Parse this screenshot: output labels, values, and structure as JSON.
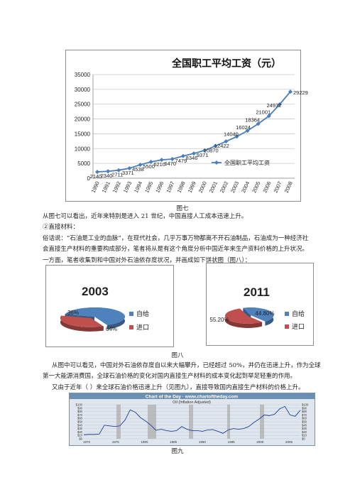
{
  "line_chart": {
    "title": "全国职工平均工资（元）",
    "legend": "全国职工平均工资",
    "caption": "图七"
  },
  "chart_data": [
    {
      "type": "line",
      "title": "全国职工平均工资（元）",
      "x": [
        "1990",
        "1991",
        "1992",
        "1993",
        "1994",
        "1995",
        "1996",
        "1997",
        "1998",
        "1999",
        "2000",
        "2001",
        "2002",
        "2003",
        "2004",
        "2005",
        "2006",
        "2007",
        "2008"
      ],
      "series": [
        {
          "name": "全国职工平均工资",
          "values": [
            2140,
            2340,
            2711,
            3371,
            4538,
            5500,
            6210,
            6470,
            7479,
            8346,
            9371,
            10870,
            12422,
            14040,
            16024,
            18364,
            21001,
            24932,
            29229
          ]
        }
      ],
      "ylim": [
        0,
        35000
      ],
      "yticks": [
        0,
        5000,
        10000,
        15000,
        20000,
        25000,
        30000,
        35000
      ],
      "data_labels": [
        "2140",
        "2340",
        "2711",
        "3371",
        "4538",
        "5500",
        "6210",
        "6470",
        "7479",
        "8346",
        "9371",
        "10870",
        "12422",
        "14040",
        "16024",
        "18364",
        "21001",
        "24932",
        "29229"
      ],
      "grid": true,
      "legend_position": "bottom-right",
      "color": "#4a7ebb"
    },
    {
      "type": "pie",
      "title": "2003",
      "categories": [
        "自给",
        "进口"
      ],
      "values": [
        64,
        36
      ],
      "labels": [
        "64%",
        "36%"
      ],
      "colors": [
        "#4f81bd",
        "#c0504d"
      ]
    },
    {
      "type": "pie",
      "title": "2011",
      "categories": [
        "自给",
        "进口"
      ],
      "values": [
        44.8,
        55.2
      ],
      "labels": [
        "44.80%",
        "55.20%"
      ],
      "colors": [
        "#4f81bd",
        "#c0504d"
      ]
    }
  ],
  "text": {
    "p1": "从图七可以看出，近年来特别是进入 21 世纪，中国直接人工成本迅速上升。",
    "p2": "②直接材料：",
    "p3a": "俗话说：“石油是工业的血脉”，在现代社会，几乎万事万物都离不开石油制品，石油成为一种经济社",
    "p3b": "会直接生产材料的重要构成部分，笔者将从是有这个角度分析中国近年来生产资料价格的上升状况。",
    "p4": "一方面，笔者收集到和中国对外石油依存度状况，并画成如下饼状图（图八）：",
    "fig8": "图八",
    "p5a": "从图中可以看见，中国对外石油依存度自以来大幅攀升，已经超过 50%，并仍在迅速上升，作为全球",
    "p5b": "第一大能源消费国，全球石油价格的变化对国内直接生产材料的成本变化起到举足轻重的作用。",
    "p6": "又由于近年（ ）来全球石油价格迅速上升（见图九），直接导致国内直接生产材料的价格上升。",
    "fig9": "图九"
  },
  "oil_chart": {
    "header": "Chart of the Day · www.chartoftheday.com",
    "subtitle": "Oil (Inflation Adjusted)",
    "yticks": [
      "$100",
      "$90",
      "$80",
      "$70",
      "$60",
      "$50",
      "$40",
      "$30",
      "$20",
      "$10",
      "$0"
    ],
    "xticks": [
      "1970",
      "1975",
      "1980",
      "1985",
      "1990",
      "1995",
      "2000",
      "2005"
    ],
    "header_color": "#6a8fb5",
    "line_color": "#1f3fa0"
  }
}
